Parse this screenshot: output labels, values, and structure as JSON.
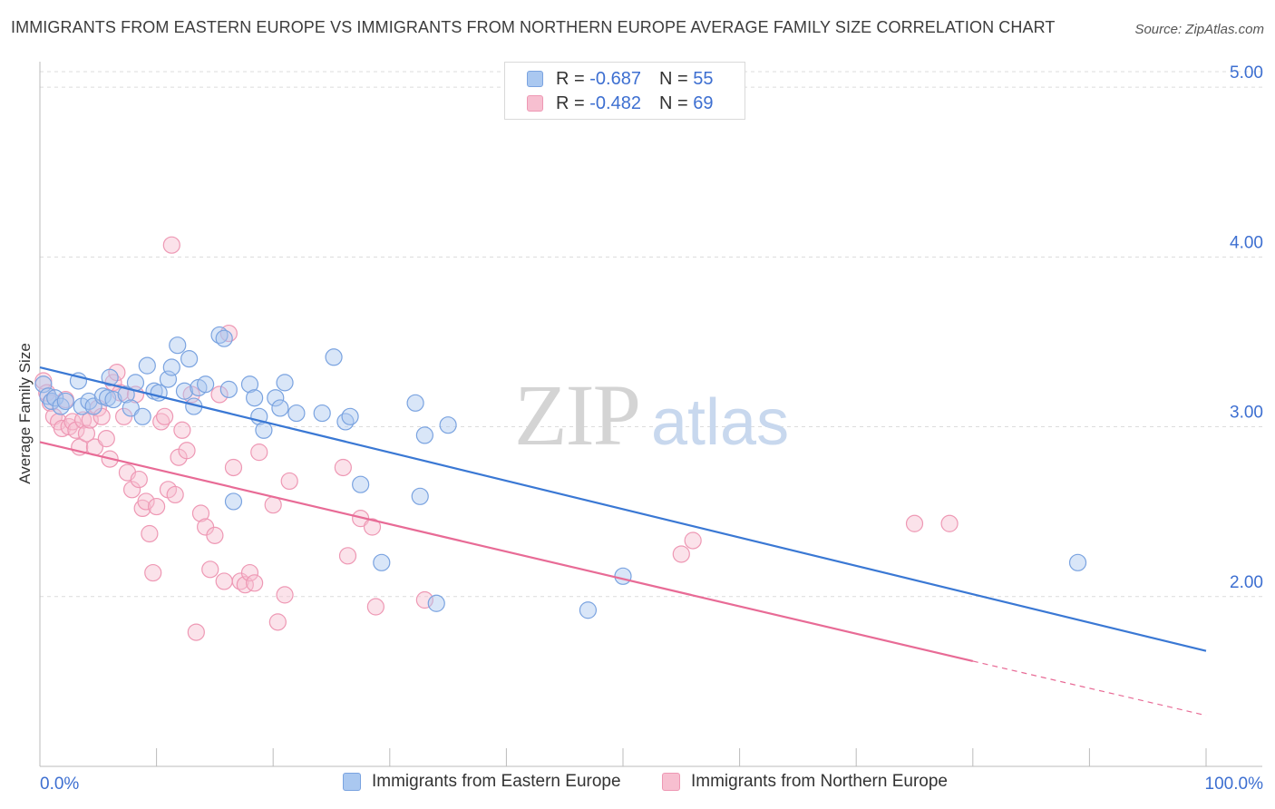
{
  "title": "IMMIGRANTS FROM EASTERN EUROPE VS IMMIGRANTS FROM NORTHERN EUROPE AVERAGE FAMILY SIZE CORRELATION CHART",
  "source": "Source: ZipAtlas.com",
  "watermark": {
    "zip": "ZIP",
    "atlas": "atlas"
  },
  "legend": {
    "r_label": "R =",
    "n_label": "N =",
    "rows": [
      {
        "r": "-0.687",
        "n": "55"
      },
      {
        "r": "-0.482",
        "n": "69"
      }
    ]
  },
  "colors": {
    "eastern_fill": "#aac8f0",
    "eastern_stroke": "#7aa3e0",
    "eastern_line": "#3a78d4",
    "northern_fill": "#f7bfd0",
    "northern_stroke": "#ee98b4",
    "northern_line": "#e86b96",
    "tick_label": "#3d6fd1"
  },
  "chart_data": {
    "type": "scatter",
    "title": "IMMIGRANTS FROM EASTERN EUROPE VS IMMIGRANTS FROM NORTHERN EUROPE AVERAGE FAMILY SIZE CORRELATION CHART",
    "xlabel": "",
    "ylabel": "Average Family Size",
    "xlim": [
      0,
      100
    ],
    "ylim": [
      1.0,
      5.15
    ],
    "x_tick_labels": [
      "0.0%",
      "100.0%"
    ],
    "y_ticks": [
      2.0,
      3.0,
      4.0,
      5.0
    ],
    "y_tick_labels": [
      "2.00",
      "3.00",
      "4.00",
      "5.00"
    ],
    "grid": "horizontal dashed",
    "legend_position": "top-center",
    "series": [
      {
        "name": "Immigrants from Eastern Europe",
        "trend": {
          "x": [
            0,
            100
          ],
          "y": [
            3.35,
            1.68
          ]
        },
        "points": [
          [
            0.3,
            3.25
          ],
          [
            0.7,
            3.18
          ],
          [
            1.0,
            3.15
          ],
          [
            1.3,
            3.17
          ],
          [
            1.8,
            3.12
          ],
          [
            2.2,
            3.15
          ],
          [
            3.3,
            3.27
          ],
          [
            3.6,
            3.12
          ],
          [
            4.2,
            3.15
          ],
          [
            4.6,
            3.12
          ],
          [
            5.4,
            3.18
          ],
          [
            5.8,
            3.17
          ],
          [
            6.0,
            3.29
          ],
          [
            6.3,
            3.16
          ],
          [
            7.4,
            3.19
          ],
          [
            7.8,
            3.11
          ],
          [
            8.2,
            3.26
          ],
          [
            8.8,
            3.06
          ],
          [
            9.2,
            3.36
          ],
          [
            9.8,
            3.21
          ],
          [
            10.2,
            3.2
          ],
          [
            11.0,
            3.28
          ],
          [
            11.3,
            3.35
          ],
          [
            11.8,
            3.48
          ],
          [
            12.4,
            3.21
          ],
          [
            12.8,
            3.4
          ],
          [
            13.2,
            3.12
          ],
          [
            13.6,
            3.23
          ],
          [
            14.2,
            3.25
          ],
          [
            15.4,
            3.54
          ],
          [
            15.8,
            3.52
          ],
          [
            16.2,
            3.22
          ],
          [
            16.6,
            2.56
          ],
          [
            18.0,
            3.25
          ],
          [
            18.4,
            3.17
          ],
          [
            18.8,
            3.06
          ],
          [
            19.2,
            2.98
          ],
          [
            20.2,
            3.17
          ],
          [
            20.6,
            3.11
          ],
          [
            21.0,
            3.26
          ],
          [
            22.0,
            3.08
          ],
          [
            24.2,
            3.08
          ],
          [
            25.2,
            3.41
          ],
          [
            26.2,
            3.03
          ],
          [
            26.6,
            3.06
          ],
          [
            27.5,
            2.66
          ],
          [
            29.3,
            2.2
          ],
          [
            32.2,
            3.14
          ],
          [
            32.6,
            2.59
          ],
          [
            33.0,
            2.95
          ],
          [
            35.0,
            3.01
          ],
          [
            34.0,
            1.96
          ],
          [
            47.0,
            1.92
          ],
          [
            50.0,
            2.12
          ],
          [
            89.0,
            2.2
          ]
        ]
      },
      {
        "name": "Immigrants from Northern Europe",
        "trend": {
          "x": [
            0,
            80
          ],
          "y": [
            2.91,
            1.62
          ]
        },
        "trend_dashed": {
          "x": [
            80,
            100
          ],
          "y": [
            1.62,
            1.3
          ]
        },
        "points": [
          [
            0.3,
            3.27
          ],
          [
            0.6,
            3.2
          ],
          [
            0.9,
            3.14
          ],
          [
            1.2,
            3.06
          ],
          [
            1.6,
            3.03
          ],
          [
            1.9,
            2.99
          ],
          [
            2.2,
            3.16
          ],
          [
            2.5,
            3.0
          ],
          [
            2.8,
            3.03
          ],
          [
            3.1,
            2.98
          ],
          [
            3.4,
            2.88
          ],
          [
            3.7,
            3.04
          ],
          [
            4.0,
            2.96
          ],
          [
            4.3,
            3.04
          ],
          [
            4.7,
            2.88
          ],
          [
            5.0,
            3.11
          ],
          [
            5.3,
            3.06
          ],
          [
            5.7,
            2.93
          ],
          [
            6.0,
            2.81
          ],
          [
            6.3,
            3.26
          ],
          [
            6.6,
            3.32
          ],
          [
            6.9,
            3.2
          ],
          [
            7.2,
            3.06
          ],
          [
            7.5,
            2.73
          ],
          [
            7.9,
            2.63
          ],
          [
            8.2,
            3.19
          ],
          [
            8.5,
            2.69
          ],
          [
            8.8,
            2.52
          ],
          [
            9.1,
            2.56
          ],
          [
            9.4,
            2.37
          ],
          [
            9.7,
            2.14
          ],
          [
            10.0,
            2.53
          ],
          [
            10.4,
            3.03
          ],
          [
            10.7,
            3.06
          ],
          [
            11.0,
            2.63
          ],
          [
            11.3,
            4.07
          ],
          [
            11.6,
            2.6
          ],
          [
            11.9,
            2.82
          ],
          [
            12.2,
            2.98
          ],
          [
            12.6,
            2.86
          ],
          [
            13.0,
            3.19
          ],
          [
            13.4,
            1.79
          ],
          [
            13.8,
            2.49
          ],
          [
            14.2,
            2.41
          ],
          [
            14.6,
            2.16
          ],
          [
            15.0,
            2.36
          ],
          [
            15.4,
            3.19
          ],
          [
            15.8,
            2.09
          ],
          [
            16.2,
            3.55
          ],
          [
            16.6,
            2.76
          ],
          [
            17.2,
            2.09
          ],
          [
            17.6,
            2.07
          ],
          [
            18.0,
            2.14
          ],
          [
            18.4,
            2.08
          ],
          [
            18.8,
            2.85
          ],
          [
            20.0,
            2.54
          ],
          [
            20.4,
            1.85
          ],
          [
            21.0,
            2.01
          ],
          [
            21.4,
            2.68
          ],
          [
            26.0,
            2.76
          ],
          [
            26.4,
            2.24
          ],
          [
            27.5,
            2.46
          ],
          [
            28.5,
            2.41
          ],
          [
            28.8,
            1.94
          ],
          [
            33.0,
            1.98
          ],
          [
            55.0,
            2.25
          ],
          [
            56.0,
            2.33
          ],
          [
            75.0,
            2.43
          ],
          [
            78.0,
            2.43
          ]
        ]
      }
    ]
  },
  "bottom_legend": {
    "eastern": "Immigrants from Eastern Europe",
    "northern": "Immigrants from Northern Europe"
  }
}
